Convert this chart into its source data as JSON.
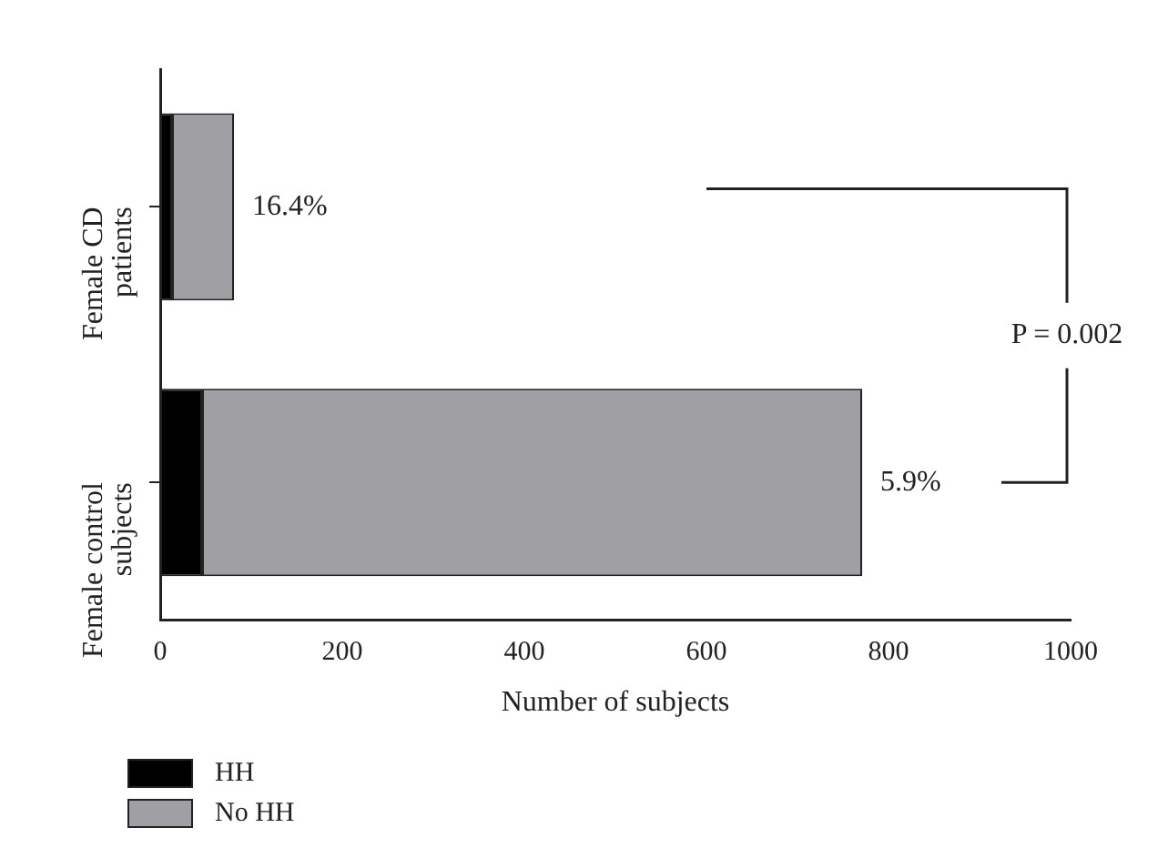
{
  "chart_data": {
    "type": "bar",
    "orientation": "horizontal",
    "stacked": true,
    "categories": [
      "Female CD patients",
      "Female control subjects"
    ],
    "series": [
      {
        "name": "HH",
        "color": "#000000",
        "values": [
          13,
          46
        ]
      },
      {
        "name": "No HH",
        "color": "#a09fa4",
        "values": [
          68,
          725
        ]
      }
    ],
    "xlim": [
      0,
      1000
    ],
    "xticks": [
      0,
      200,
      400,
      600,
      800,
      1000
    ],
    "xlabel": "Number of subjects",
    "annotations": [
      {
        "text": "16.4%",
        "x": 81,
        "y": "Female CD patients"
      },
      {
        "text": "5.9%",
        "x": 771,
        "y": "Female control subjects"
      },
      "P = 0.002"
    ],
    "legend": "bottom left",
    "grid": false
  }
}
